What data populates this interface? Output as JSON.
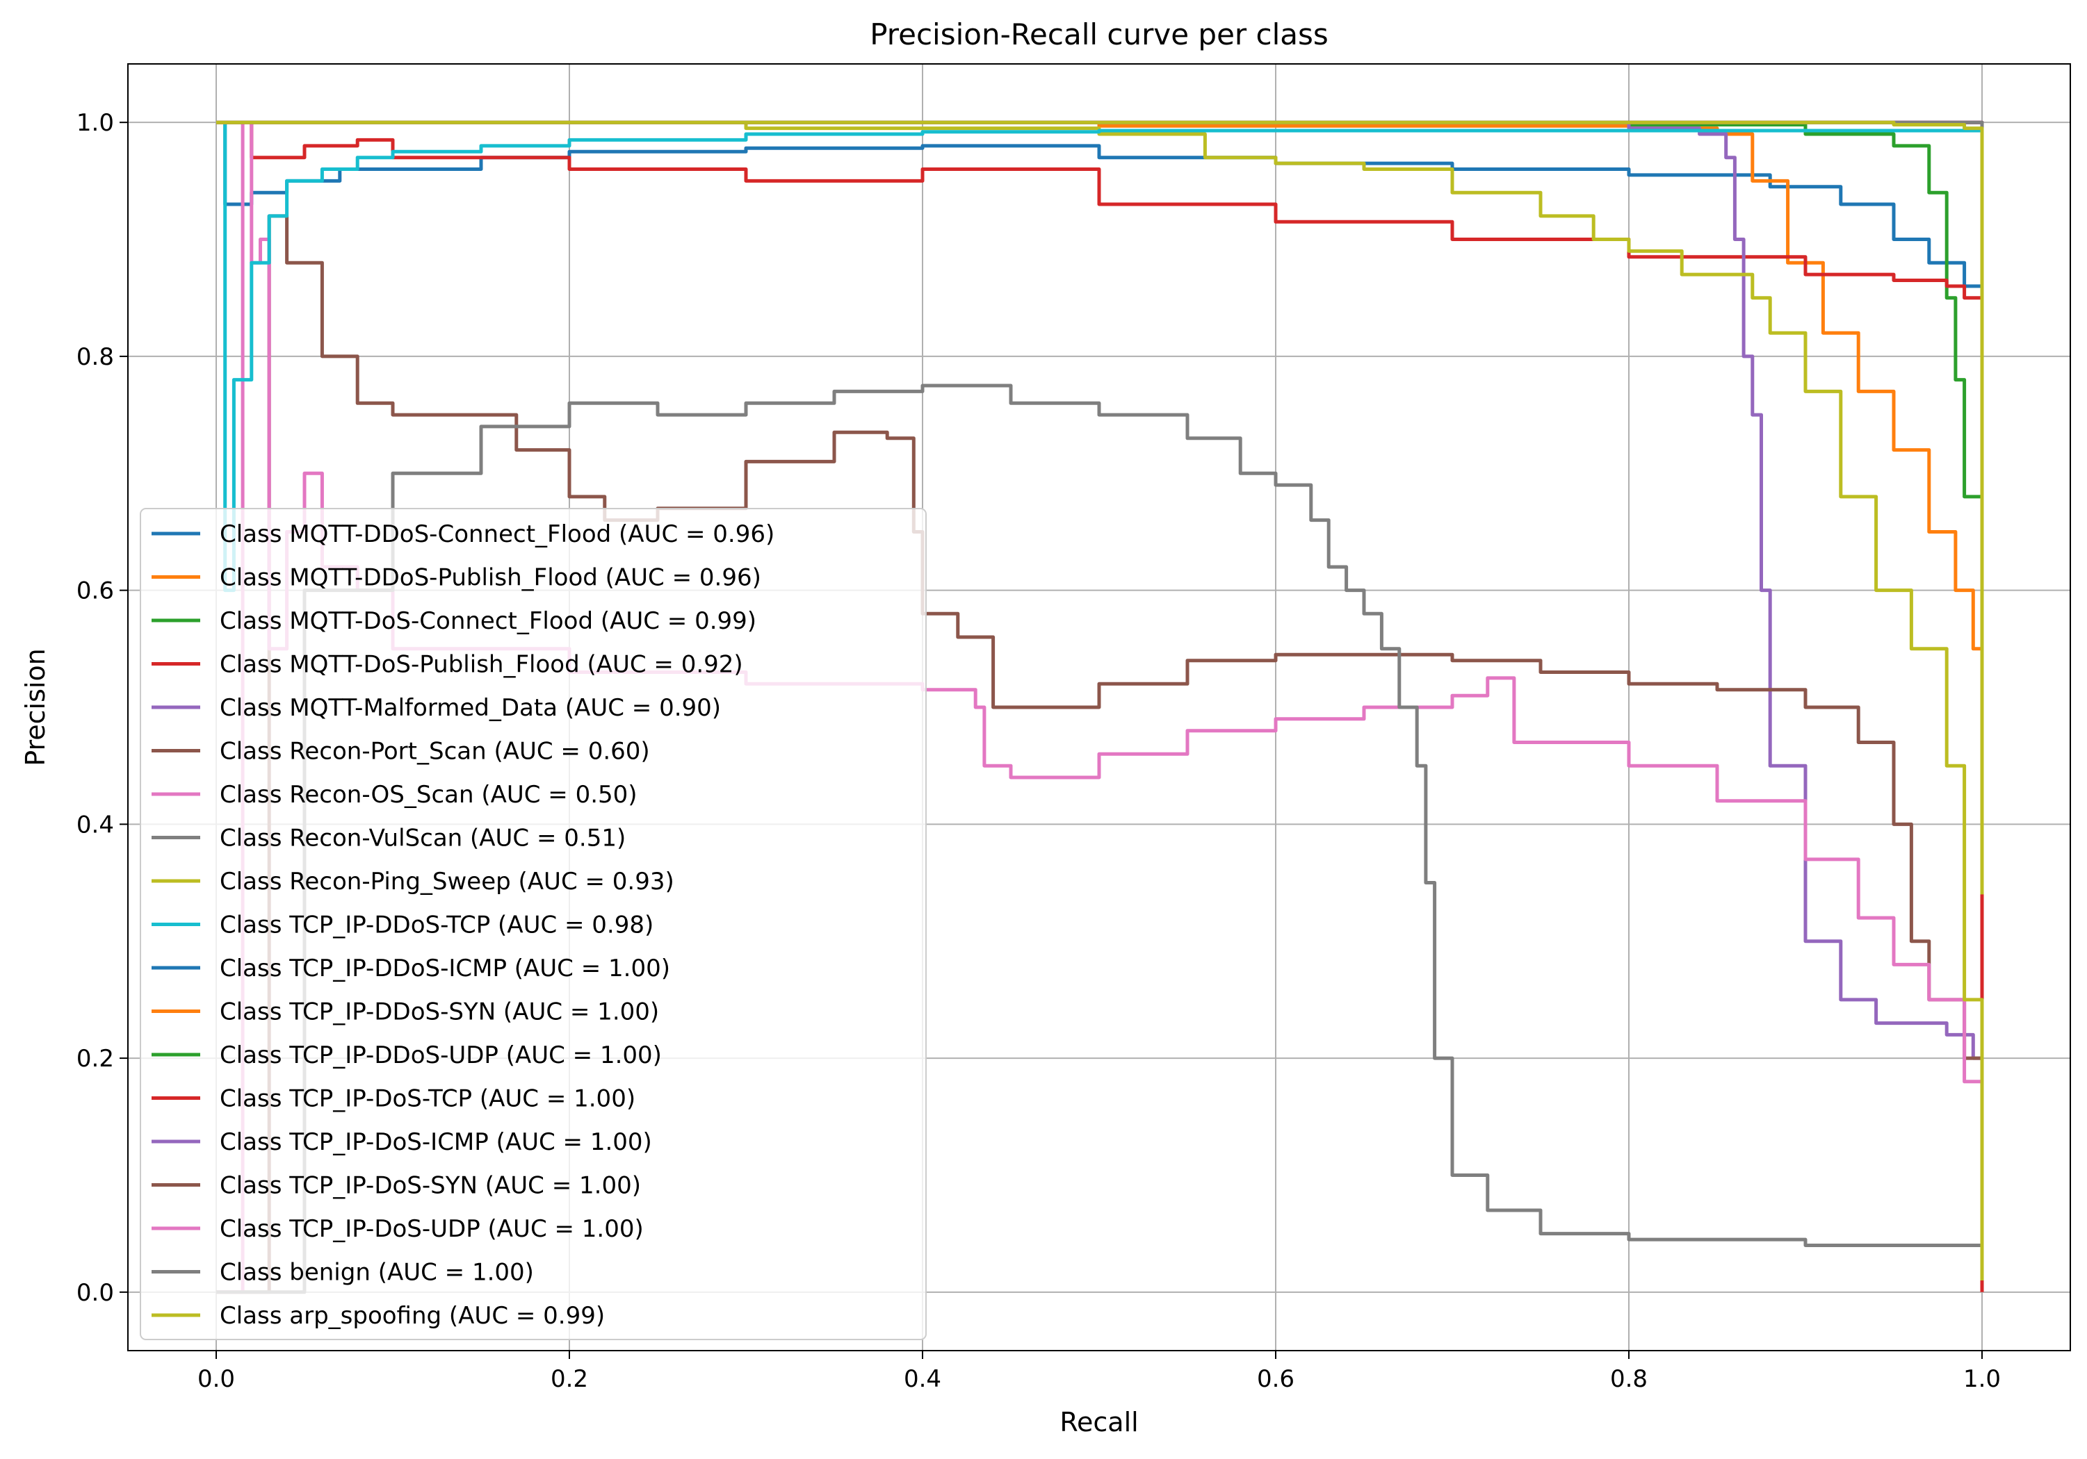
{
  "chart_data": {
    "type": "line",
    "title": "Precision-Recall curve per class",
    "xlabel": "Recall",
    "ylabel": "Precision",
    "xlim": [
      -0.05,
      1.05
    ],
    "ylim": [
      -0.05,
      1.05
    ],
    "xticks": [
      0.0,
      0.2,
      0.4,
      0.6,
      0.8,
      1.0
    ],
    "xtick_labels": [
      "0.0",
      "0.2",
      "0.4",
      "0.6",
      "0.8",
      "1.0"
    ],
    "yticks": [
      0.0,
      0.2,
      0.4,
      0.6,
      0.8,
      1.0
    ],
    "ytick_labels": [
      "0.0",
      "0.2",
      "0.4",
      "0.6",
      "0.8",
      "1.0"
    ],
    "grid": true,
    "legend_position": "lower-left",
    "series": [
      {
        "name": "Class MQTT-DDoS-Connect_Flood (AUC = 0.96)",
        "color": "#1f77b4",
        "x": [
          0.0,
          0.005,
          0.02,
          0.04,
          0.07,
          0.1,
          0.15,
          0.2,
          0.3,
          0.4,
          0.5,
          0.6,
          0.7,
          0.8,
          0.85,
          0.88,
          0.92,
          0.95,
          0.97,
          0.99,
          1.0,
          1.0
        ],
        "y": [
          1.0,
          0.93,
          0.94,
          0.95,
          0.96,
          0.96,
          0.97,
          0.975,
          0.978,
          0.98,
          0.97,
          0.965,
          0.96,
          0.955,
          0.955,
          0.945,
          0.93,
          0.9,
          0.88,
          0.86,
          0.83,
          0.6
        ]
      },
      {
        "name": "Class MQTT-DDoS-Publish_Flood (AUC = 0.96)",
        "color": "#ff7f0e",
        "x": [
          0.0,
          0.5,
          0.8,
          0.85,
          0.87,
          0.89,
          0.91,
          0.93,
          0.95,
          0.97,
          0.985,
          0.995,
          1.0
        ],
        "y": [
          1.0,
          0.997,
          0.995,
          0.99,
          0.95,
          0.88,
          0.82,
          0.77,
          0.72,
          0.65,
          0.6,
          0.55,
          0.5
        ]
      },
      {
        "name": "Class MQTT-DoS-Connect_Flood (AUC = 0.99)",
        "color": "#2ca02c",
        "x": [
          0.0,
          0.8,
          0.9,
          0.95,
          0.97,
          0.98,
          0.985,
          0.99,
          1.0,
          1.0
        ],
        "y": [
          1.0,
          0.998,
          0.99,
          0.98,
          0.94,
          0.85,
          0.78,
          0.68,
          0.6,
          1.0
        ]
      },
      {
        "name": "Class MQTT-DoS-Publish_Flood (AUC = 0.92)",
        "color": "#d62728",
        "x": [
          0.0,
          0.02,
          0.05,
          0.08,
          0.1,
          0.15,
          0.2,
          0.3,
          0.4,
          0.5,
          0.6,
          0.7,
          0.8,
          0.9,
          0.95,
          0.98,
          0.99,
          1.0
        ],
        "y": [
          1.0,
          0.97,
          0.98,
          0.985,
          0.97,
          0.97,
          0.96,
          0.95,
          0.96,
          0.93,
          0.915,
          0.9,
          0.885,
          0.87,
          0.865,
          0.86,
          0.85,
          0.0
        ]
      },
      {
        "name": "Class MQTT-Malformed_Data (AUC = 0.90)",
        "color": "#9467bd",
        "x": [
          0.0,
          0.8,
          0.84,
          0.855,
          0.86,
          0.865,
          0.87,
          0.875,
          0.88,
          0.9,
          0.92,
          0.94,
          0.96,
          0.98,
          0.995,
          1.0
        ],
        "y": [
          1.0,
          0.995,
          0.99,
          0.97,
          0.9,
          0.8,
          0.75,
          0.6,
          0.45,
          0.3,
          0.25,
          0.23,
          0.23,
          0.22,
          0.2,
          0.2
        ]
      },
      {
        "name": "Class Recon-Port_Scan (AUC = 0.60)",
        "color": "#8c564b",
        "x": [
          0.0,
          0.03,
          0.04,
          0.06,
          0.08,
          0.1,
          0.13,
          0.17,
          0.2,
          0.22,
          0.25,
          0.3,
          0.35,
          0.38,
          0.395,
          0.4,
          0.42,
          0.44,
          0.5,
          0.55,
          0.6,
          0.65,
          0.7,
          0.75,
          0.8,
          0.85,
          0.9,
          0.93,
          0.95,
          0.96,
          0.97,
          0.99,
          1.0
        ],
        "y": [
          0.0,
          0.92,
          0.88,
          0.8,
          0.76,
          0.75,
          0.75,
          0.72,
          0.68,
          0.66,
          0.67,
          0.71,
          0.735,
          0.73,
          0.65,
          0.58,
          0.56,
          0.5,
          0.52,
          0.54,
          0.545,
          0.545,
          0.54,
          0.53,
          0.52,
          0.515,
          0.5,
          0.47,
          0.4,
          0.3,
          0.25,
          0.2,
          0.18
        ]
      },
      {
        "name": "Class Recon-OS_Scan (AUC = 0.50)",
        "color": "#e377c2",
        "x": [
          0.0,
          0.015,
          0.02,
          0.025,
          0.03,
          0.04,
          0.05,
          0.06,
          0.08,
          0.1,
          0.2,
          0.3,
          0.4,
          0.43,
          0.435,
          0.45,
          0.5,
          0.55,
          0.6,
          0.65,
          0.7,
          0.72,
          0.735,
          0.8,
          0.85,
          0.9,
          0.93,
          0.95,
          0.97,
          0.99,
          1.0
        ],
        "y": [
          0.0,
          1.0,
          0.88,
          0.9,
          0.55,
          0.65,
          0.7,
          0.62,
          0.6,
          0.55,
          0.53,
          0.52,
          0.515,
          0.5,
          0.45,
          0.44,
          0.46,
          0.48,
          0.49,
          0.5,
          0.51,
          0.525,
          0.47,
          0.45,
          0.42,
          0.37,
          0.32,
          0.28,
          0.25,
          0.18,
          0.08
        ]
      },
      {
        "name": "Class Recon-VulScan (AUC = 0.51)",
        "color": "#7f7f7f",
        "x": [
          0.0,
          0.05,
          0.1,
          0.15,
          0.2,
          0.25,
          0.3,
          0.35,
          0.4,
          0.45,
          0.5,
          0.55,
          0.58,
          0.6,
          0.62,
          0.63,
          0.64,
          0.65,
          0.66,
          0.67,
          0.68,
          0.685,
          0.69,
          0.7,
          0.72,
          0.75,
          0.8,
          0.9,
          1.0
        ],
        "y": [
          0.0,
          0.6,
          0.7,
          0.74,
          0.76,
          0.75,
          0.76,
          0.77,
          0.775,
          0.76,
          0.75,
          0.73,
          0.7,
          0.69,
          0.66,
          0.62,
          0.6,
          0.58,
          0.55,
          0.5,
          0.45,
          0.35,
          0.2,
          0.1,
          0.07,
          0.05,
          0.045,
          0.04,
          0.03
        ]
      },
      {
        "name": "Class Recon-Ping_Sweep (AUC = 0.93)",
        "color": "#bcbd22",
        "x": [
          0.0,
          0.3,
          0.5,
          0.56,
          0.6,
          0.65,
          0.7,
          0.75,
          0.78,
          0.8,
          0.83,
          0.87,
          0.88,
          0.9,
          0.92,
          0.94,
          0.96,
          0.98,
          0.99,
          1.0,
          1.0
        ],
        "y": [
          1.0,
          0.995,
          0.99,
          0.97,
          0.965,
          0.96,
          0.94,
          0.92,
          0.9,
          0.89,
          0.87,
          0.85,
          0.82,
          0.77,
          0.68,
          0.6,
          0.55,
          0.45,
          0.25,
          0.2,
          0.01
        ]
      },
      {
        "name": "Class TCP_IP-DDoS-TCP (AUC = 0.98)",
        "color": "#17becf",
        "x": [
          0.0,
          0.005,
          0.01,
          0.02,
          0.03,
          0.04,
          0.06,
          0.08,
          0.1,
          0.15,
          0.2,
          0.3,
          0.4,
          0.5,
          1.0
        ],
        "y": [
          1.0,
          0.6,
          0.78,
          0.88,
          0.92,
          0.95,
          0.96,
          0.97,
          0.975,
          0.98,
          0.985,
          0.99,
          0.992,
          0.993,
          0.995
        ]
      },
      {
        "name": "Class TCP_IP-DDoS-ICMP (AUC = 1.00)",
        "color": "#1f77b4",
        "x": [
          0.0,
          1.0,
          1.0
        ],
        "y": [
          1.0,
          1.0,
          0.95
        ]
      },
      {
        "name": "Class TCP_IP-DDoS-SYN (AUC = 1.00)",
        "color": "#ff7f0e",
        "x": [
          0.0,
          1.0,
          1.0
        ],
        "y": [
          1.0,
          1.0,
          0.98
        ]
      },
      {
        "name": "Class TCP_IP-DDoS-UDP (AUC = 1.00)",
        "color": "#2ca02c",
        "x": [
          0.0,
          1.0,
          1.0
        ],
        "y": [
          1.0,
          1.0,
          0.97
        ]
      },
      {
        "name": "Class TCP_IP-DoS-TCP (AUC = 1.00)",
        "color": "#d62728",
        "x": [
          0.0,
          1.0,
          1.0
        ],
        "y": [
          1.0,
          1.0,
          0.97
        ]
      },
      {
        "name": "Class TCP_IP-DoS-ICMP (AUC = 1.00)",
        "color": "#9467bd",
        "x": [
          0.0,
          1.0,
          1.0
        ],
        "y": [
          1.0,
          1.0,
          0.98
        ]
      },
      {
        "name": "Class TCP_IP-DoS-SYN (AUC = 1.00)",
        "color": "#8c564b",
        "x": [
          0.0,
          1.0,
          1.0
        ],
        "y": [
          1.0,
          1.0,
          0.98
        ]
      },
      {
        "name": "Class TCP_IP-DoS-UDP (AUC = 1.00)",
        "color": "#e377c2",
        "x": [
          0.0,
          1.0,
          1.0
        ],
        "y": [
          1.0,
          1.0,
          0.98
        ]
      },
      {
        "name": "Class benign (AUC = 1.00)",
        "color": "#7f7f7f",
        "x": [
          0.0,
          1.0,
          1.0
        ],
        "y": [
          1.0,
          1.0,
          0.98
        ]
      },
      {
        "name": "Class arp_spoofing (AUC = 0.99)",
        "color": "#bcbd22",
        "x": [
          0.0,
          0.95,
          0.99,
          1.0,
          1.0
        ],
        "y": [
          1.0,
          0.998,
          0.995,
          0.99,
          0.34
        ]
      }
    ]
  }
}
